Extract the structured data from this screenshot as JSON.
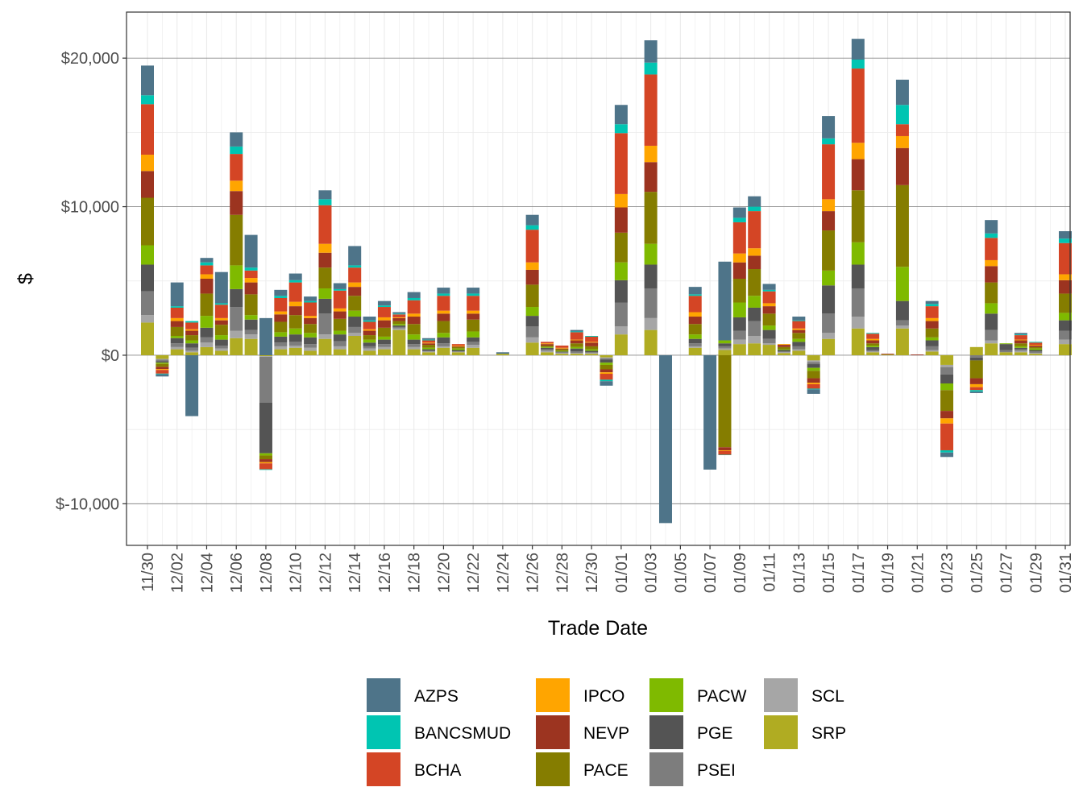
{
  "chart_data": {
    "type": "bar",
    "stacked": true,
    "title": "",
    "xlabel": "Trade Date",
    "ylabel": "$",
    "ylim": [
      -12800,
      23100
    ],
    "y_ticks": [
      -10000,
      0,
      10000,
      20000
    ],
    "y_tick_labels": [
      "$-10,000",
      "$0",
      "$10,000",
      "$20,000"
    ],
    "x_tick_labels": [
      "11/30",
      "12/02",
      "12/04",
      "12/06",
      "12/08",
      "12/10",
      "12/12",
      "12/14",
      "12/16",
      "12/18",
      "12/20",
      "12/22",
      "12/24",
      "12/26",
      "12/28",
      "12/30",
      "01/01",
      "01/03",
      "01/05",
      "01/07",
      "01/09",
      "01/11",
      "01/13",
      "01/15",
      "01/17",
      "01/19",
      "01/21",
      "01/23",
      "01/25",
      "01/27",
      "01/29",
      "01/31"
    ],
    "categories": [
      "11/30",
      "12/01",
      "12/02",
      "12/03",
      "12/04",
      "12/05",
      "12/06",
      "12/07",
      "12/08",
      "12/09",
      "12/10",
      "12/11",
      "12/12",
      "12/13",
      "12/14",
      "12/15",
      "12/16",
      "12/17",
      "12/18",
      "12/19",
      "12/20",
      "12/21",
      "12/22",
      "12/23",
      "12/24",
      "12/25",
      "12/26",
      "12/27",
      "12/28",
      "12/29",
      "12/30",
      "12/31",
      "01/01",
      "01/02",
      "01/03",
      "01/04",
      "01/05",
      "01/06",
      "01/07",
      "01/08",
      "01/09",
      "01/10",
      "01/11",
      "01/12",
      "01/13",
      "01/14",
      "01/15",
      "01/16",
      "01/17",
      "01/18",
      "01/19",
      "01/20",
      "01/21",
      "01/22",
      "01/23",
      "01/24",
      "01/25",
      "01/26",
      "01/27",
      "01/28",
      "01/29",
      "01/30",
      "01/31"
    ],
    "legend_position": "bottom",
    "series": [
      {
        "name": "SRP",
        "color": "#B0AC22",
        "values": [
          2200,
          -250,
          400,
          200,
          550,
          300,
          1150,
          1100,
          -60,
          400,
          500,
          300,
          1100,
          400,
          1300,
          300,
          400,
          1700,
          400,
          200,
          500,
          200,
          500,
          0,
          100,
          0,
          850,
          200,
          100,
          100,
          100,
          -150,
          1400,
          0,
          1700,
          0,
          0,
          500,
          0,
          350,
          750,
          800,
          700,
          150,
          300,
          -350,
          1100,
          0,
          1800,
          200,
          50,
          1800,
          0,
          250,
          -650,
          0,
          550,
          800,
          200,
          200,
          100,
          0,
          750
        ]
      },
      {
        "name": "SCL",
        "color": "#A6A6A6",
        "values": [
          500,
          -50,
          150,
          100,
          300,
          150,
          500,
          300,
          -40,
          200,
          150,
          200,
          300,
          200,
          200,
          150,
          150,
          100,
          150,
          50,
          100,
          50,
          200,
          0,
          0,
          0,
          350,
          100,
          50,
          50,
          50,
          -50,
          550,
          0,
          800,
          0,
          0,
          100,
          0,
          100,
          300,
          500,
          100,
          50,
          100,
          -100,
          400,
          0,
          800,
          50,
          0,
          200,
          0,
          100,
          -150,
          0,
          0,
          200,
          0,
          100,
          50,
          0,
          300
        ]
      },
      {
        "name": "PSEI",
        "color": "#7D7D7D",
        "values": [
          1600,
          -100,
          250,
          200,
          350,
          200,
          1600,
          300,
          -3100,
          250,
          250,
          250,
          1400,
          350,
          400,
          150,
          200,
          100,
          200,
          50,
          200,
          0,
          200,
          0,
          0,
          0,
          750,
          100,
          50,
          100,
          50,
          -100,
          1600,
          0,
          2000,
          0,
          0,
          200,
          0,
          150,
          600,
          1000,
          300,
          50,
          200,
          -150,
          1300,
          0,
          1900,
          100,
          0,
          350,
          0,
          250,
          -500,
          0,
          -150,
          700,
          150,
          100,
          100,
          0,
          600
        ]
      },
      {
        "name": "PGE",
        "color": "#545454",
        "values": [
          1800,
          -100,
          350,
          300,
          650,
          400,
          1200,
          700,
          -3400,
          400,
          500,
          450,
          1000,
          450,
          700,
          250,
          300,
          100,
          300,
          100,
          400,
          100,
          300,
          0,
          0,
          0,
          700,
          100,
          50,
          200,
          100,
          -200,
          1500,
          0,
          1600,
          0,
          0,
          300,
          0,
          200,
          900,
          900,
          600,
          100,
          300,
          -250,
          1900,
          0,
          1600,
          200,
          0,
          1300,
          0,
          400,
          -600,
          0,
          -200,
          1100,
          400,
          100,
          100,
          0,
          700
        ]
      },
      {
        "name": "PACW",
        "color": "#7FBA00",
        "values": [
          1300,
          -80,
          150,
          200,
          800,
          300,
          1600,
          300,
          -150,
          300,
          400,
          300,
          700,
          250,
          400,
          200,
          200,
          100,
          350,
          100,
          300,
          100,
          400,
          0,
          0,
          0,
          600,
          50,
          50,
          100,
          100,
          -150,
          1200,
          0,
          1400,
          0,
          0,
          300,
          0,
          200,
          1000,
          800,
          300,
          50,
          200,
          -200,
          1000,
          0,
          1500,
          100,
          0,
          2300,
          0,
          200,
          -450,
          0,
          0,
          700,
          50,
          100,
          100,
          0,
          500
        ]
      },
      {
        "name": "PACE",
        "color": "#857D00",
        "values": [
          3200,
          -200,
          600,
          350,
          1500,
          700,
          3400,
          1400,
          -250,
          700,
          900,
          600,
          1400,
          800,
          1000,
          300,
          600,
          200,
          700,
          200,
          800,
          100,
          800,
          0,
          0,
          0,
          1500,
          100,
          100,
          250,
          200,
          -300,
          2000,
          0,
          3500,
          0,
          0,
          700,
          0,
          -6200,
          1600,
          1800,
          800,
          150,
          400,
          -500,
          2700,
          0,
          3500,
          150,
          0,
          5500,
          0,
          600,
          -1400,
          0,
          -1200,
          1400,
          0,
          200,
          100,
          0,
          1300
        ]
      },
      {
        "name": "NEVP",
        "color": "#9C3420",
        "values": [
          1800,
          -150,
          400,
          300,
          1000,
          300,
          1600,
          800,
          -200,
          500,
          600,
          400,
          1000,
          500,
          600,
          300,
          500,
          200,
          500,
          100,
          500,
          50,
          400,
          0,
          0,
          0,
          1000,
          100,
          50,
          200,
          250,
          -200,
          1700,
          0,
          2000,
          0,
          0,
          500,
          0,
          -200,
          1100,
          900,
          500,
          150,
          200,
          -300,
          1300,
          0,
          2100,
          200,
          50,
          2500,
          50,
          500,
          -500,
          0,
          -400,
          1100,
          0,
          200,
          100,
          0,
          900
        ]
      },
      {
        "name": "IPCO",
        "color": "#FFA500",
        "values": [
          1100,
          -60,
          200,
          100,
          300,
          150,
          700,
          300,
          -80,
          200,
          300,
          150,
          600,
          200,
          300,
          100,
          200,
          50,
          200,
          50,
          200,
          50,
          200,
          0,
          0,
          0,
          500,
          50,
          50,
          50,
          50,
          -100,
          900,
          0,
          1100,
          0,
          0,
          300,
          0,
          -50,
          600,
          500,
          200,
          50,
          100,
          -100,
          800,
          0,
          1100,
          100,
          0,
          800,
          0,
          200,
          -350,
          0,
          -200,
          400,
          0,
          50,
          50,
          0,
          400
        ]
      },
      {
        "name": "BCHA",
        "color": "#D44525",
        "values": [
          3400,
          -250,
          700,
          450,
          600,
          900,
          1800,
          500,
          -400,
          900,
          1300,
          900,
          2600,
          1200,
          1000,
          500,
          700,
          200,
          900,
          150,
          1000,
          100,
          1000,
          0,
          0,
          0,
          2200,
          100,
          150,
          500,
          350,
          -400,
          4100,
          0,
          4800,
          0,
          0,
          1100,
          0,
          -250,
          2100,
          2500,
          800,
          0,
          500,
          -300,
          3700,
          0,
          5000,
          350,
          0,
          800,
          0,
          800,
          -1800,
          0,
          -200,
          1500,
          0,
          300,
          150,
          0,
          2100
        ]
      },
      {
        "name": "BANCSMUD",
        "color": "#00C5B2",
        "values": [
          600,
          -40,
          100,
          100,
          200,
          100,
          500,
          200,
          -40,
          150,
          150,
          100,
          400,
          100,
          150,
          100,
          100,
          50,
          150,
          50,
          150,
          0,
          150,
          0,
          0,
          0,
          300,
          0,
          0,
          50,
          50,
          -100,
          600,
          0,
          800,
          0,
          0,
          100,
          0,
          -20,
          300,
          300,
          100,
          0,
          50,
          -50,
          400,
          0,
          600,
          50,
          0,
          1300,
          0,
          150,
          -150,
          0,
          -100,
          300,
          0,
          50,
          50,
          0,
          300
        ]
      },
      {
        "name": "AZPS",
        "color": "#4E7489",
        "values": [
          2000,
          -150,
          1600,
          -4100,
          300,
          2100,
          950,
          2200,
          2500,
          400,
          450,
          300,
          600,
          400,
          1300,
          250,
          300,
          100,
          400,
          100,
          400,
          0,
          400,
          0,
          100,
          0,
          700,
          0,
          0,
          100,
          0,
          -300,
          1300,
          0,
          1500,
          -11300,
          0,
          500,
          -7700,
          5300,
          700,
          700,
          400,
          0,
          250,
          -300,
          1500,
          0,
          1400,
          0,
          0,
          1700,
          0,
          200,
          -300,
          0,
          -100,
          900,
          0,
          100,
          0,
          0,
          500
        ]
      }
    ]
  }
}
